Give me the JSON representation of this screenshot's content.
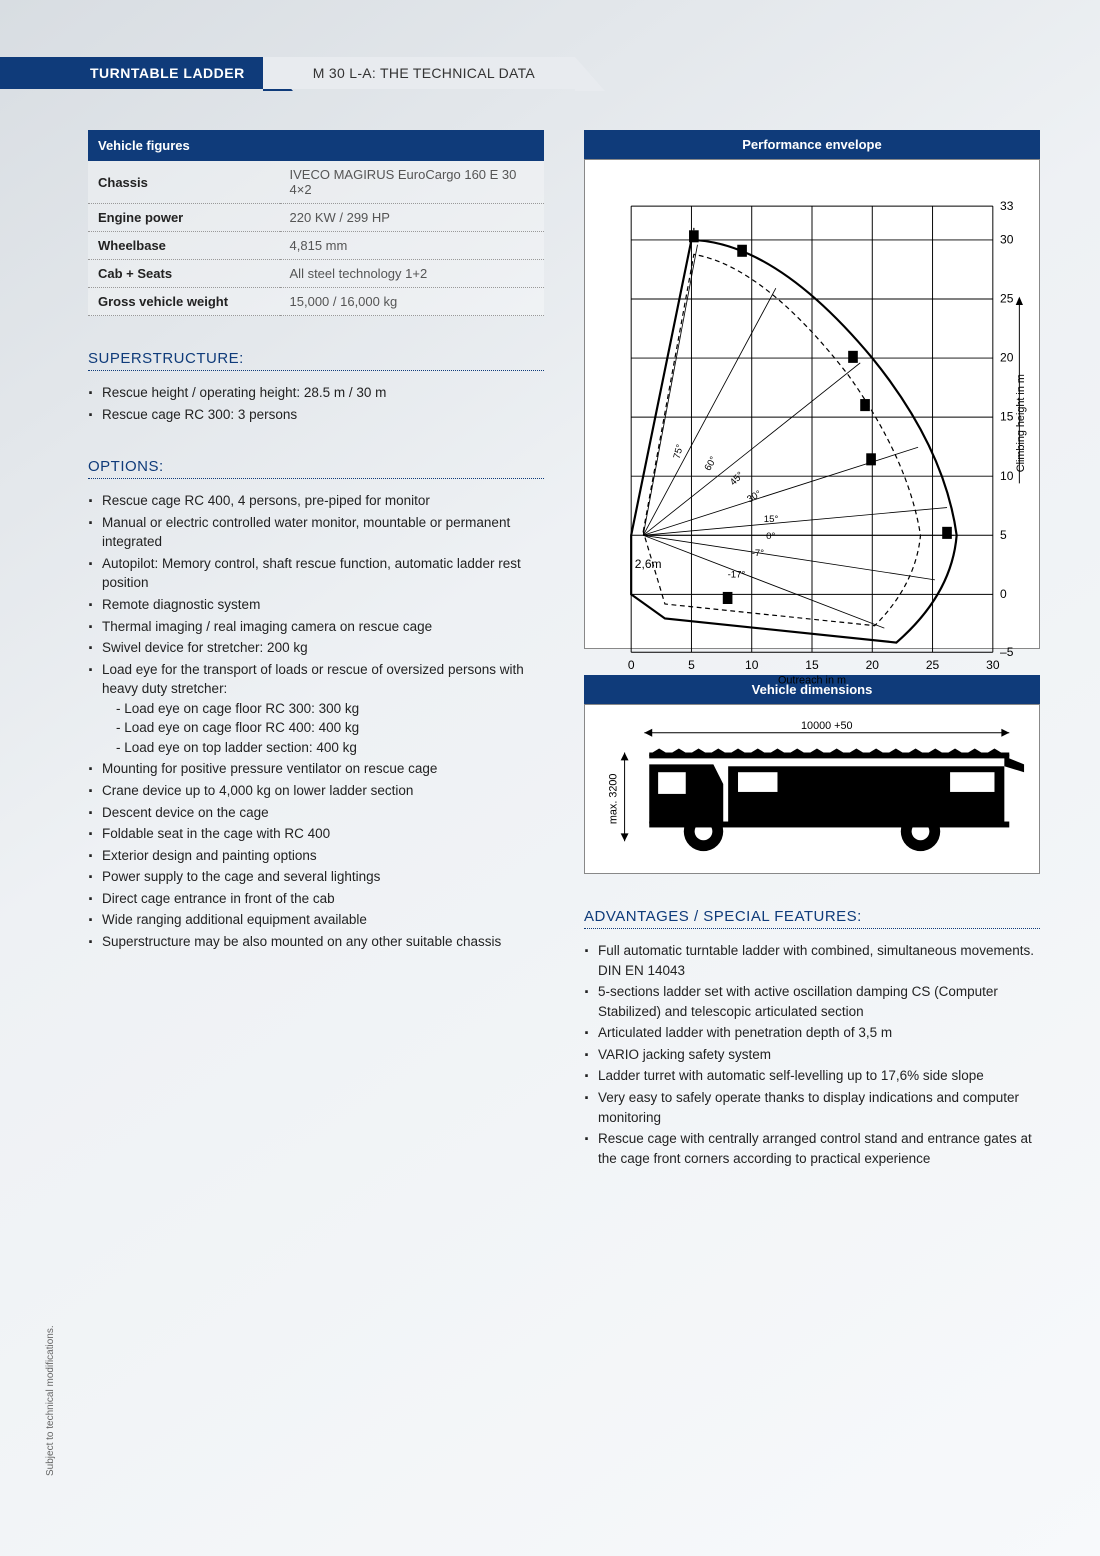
{
  "header": {
    "tab": "TURNTABLE LADDER",
    "subtitle": "M 30 L-A: THE TECHNICAL DATA"
  },
  "vehicle_figures": {
    "title": "Vehicle figures",
    "rows": [
      {
        "label": "Chassis",
        "value": "IVECO MAGIRUS EuroCargo 160 E 30 4×2"
      },
      {
        "label": "Engine power",
        "value": "220 KW / 299 HP"
      },
      {
        "label": "Wheelbase",
        "value": "4,815 mm"
      },
      {
        "label": "Cab + Seats",
        "value": "All steel technology 1+2"
      },
      {
        "label": "Gross vehicle weight",
        "value": "15,000 / 16,000 kg"
      }
    ]
  },
  "superstructure": {
    "title": "SUPERSTRUCTURE:",
    "items": [
      "Rescue height / operating height: 28.5 m / 30 m",
      "Rescue cage RC 300: 3 persons"
    ]
  },
  "options": {
    "title": "OPTIONS:",
    "items": [
      "Rescue cage RC 400, 4 persons, pre-piped for monitor",
      "Manual or electric controlled water monitor, mountable or permanent integrated",
      "Autopilot: Memory control, shaft rescue function, automatic ladder rest position",
      "Remote diagnostic system",
      "Thermal imaging / real imaging camera on rescue cage",
      "Swivel device for stretcher: 200 kg",
      "Load eye for the transport of loads or rescue of oversized persons with heavy duty stretcher:",
      "Mounting for positive pressure ventilator on rescue cage",
      "Crane device up to 4,000 kg on lower ladder section",
      "Descent device on the cage",
      "Foldable seat in the cage with RC 400",
      "Exterior design and painting options",
      "Power supply to the cage and several lightings",
      "Direct cage entrance in front of the cab",
      "Wide ranging additional equipment available",
      "Superstructure may be also mounted on any other suitable chassis"
    ],
    "load_eye_sub": [
      "- Load eye on cage floor RC 300: 300 kg",
      "- Load eye on cage floor RC 400: 400 kg",
      "- Load eye on top ladder section: 400 kg"
    ]
  },
  "performance_envelope": {
    "title": "Performance envelope",
    "x_axis_label": "Outreach in m",
    "y_axis_label": "Climbing height in m",
    "x_ticks": [
      0,
      5,
      10,
      15,
      20,
      25,
      30
    ],
    "y_ticks": [
      -5,
      0,
      5,
      10,
      15,
      20,
      25,
      30,
      33
    ],
    "angle_labels": [
      "75°",
      "60°",
      "45°",
      "30°",
      "15°",
      "0°",
      "-7°",
      "-17°"
    ],
    "base_label": "2,6m",
    "colors": {
      "grid": "#000",
      "envelope": "#000"
    }
  },
  "vehicle_dimensions": {
    "title": "Vehicle dimensions",
    "length_label": "10000 +50",
    "height_label": "max. 3200"
  },
  "advantages": {
    "title": "ADVANTAGES / SPECIAL FEATURES:",
    "items": [
      "Full automatic turntable ladder with combined, simultaneous movements. DIN EN 14043",
      "5-sections ladder set with active oscillation damping CS (Computer Stabilized) and telescopic articulated section",
      "Articulated ladder with penetration depth of 3,5 m",
      "VARIO jacking safety system",
      "Ladder turret with automatic self-levelling up to 17,6% side slope",
      "Very easy to safely operate thanks to display indications and computer monitoring",
      "Rescue cage with centrally arranged control stand and entrance gates at the cage front corners according to practical experience"
    ]
  },
  "footnote": "Subject to technical modifications.",
  "colors": {
    "brand_blue": "#0f3b7a",
    "bg_start": "#d8dde2",
    "bg_end": "#f7f9fb",
    "text": "#222",
    "muted": "#555"
  }
}
